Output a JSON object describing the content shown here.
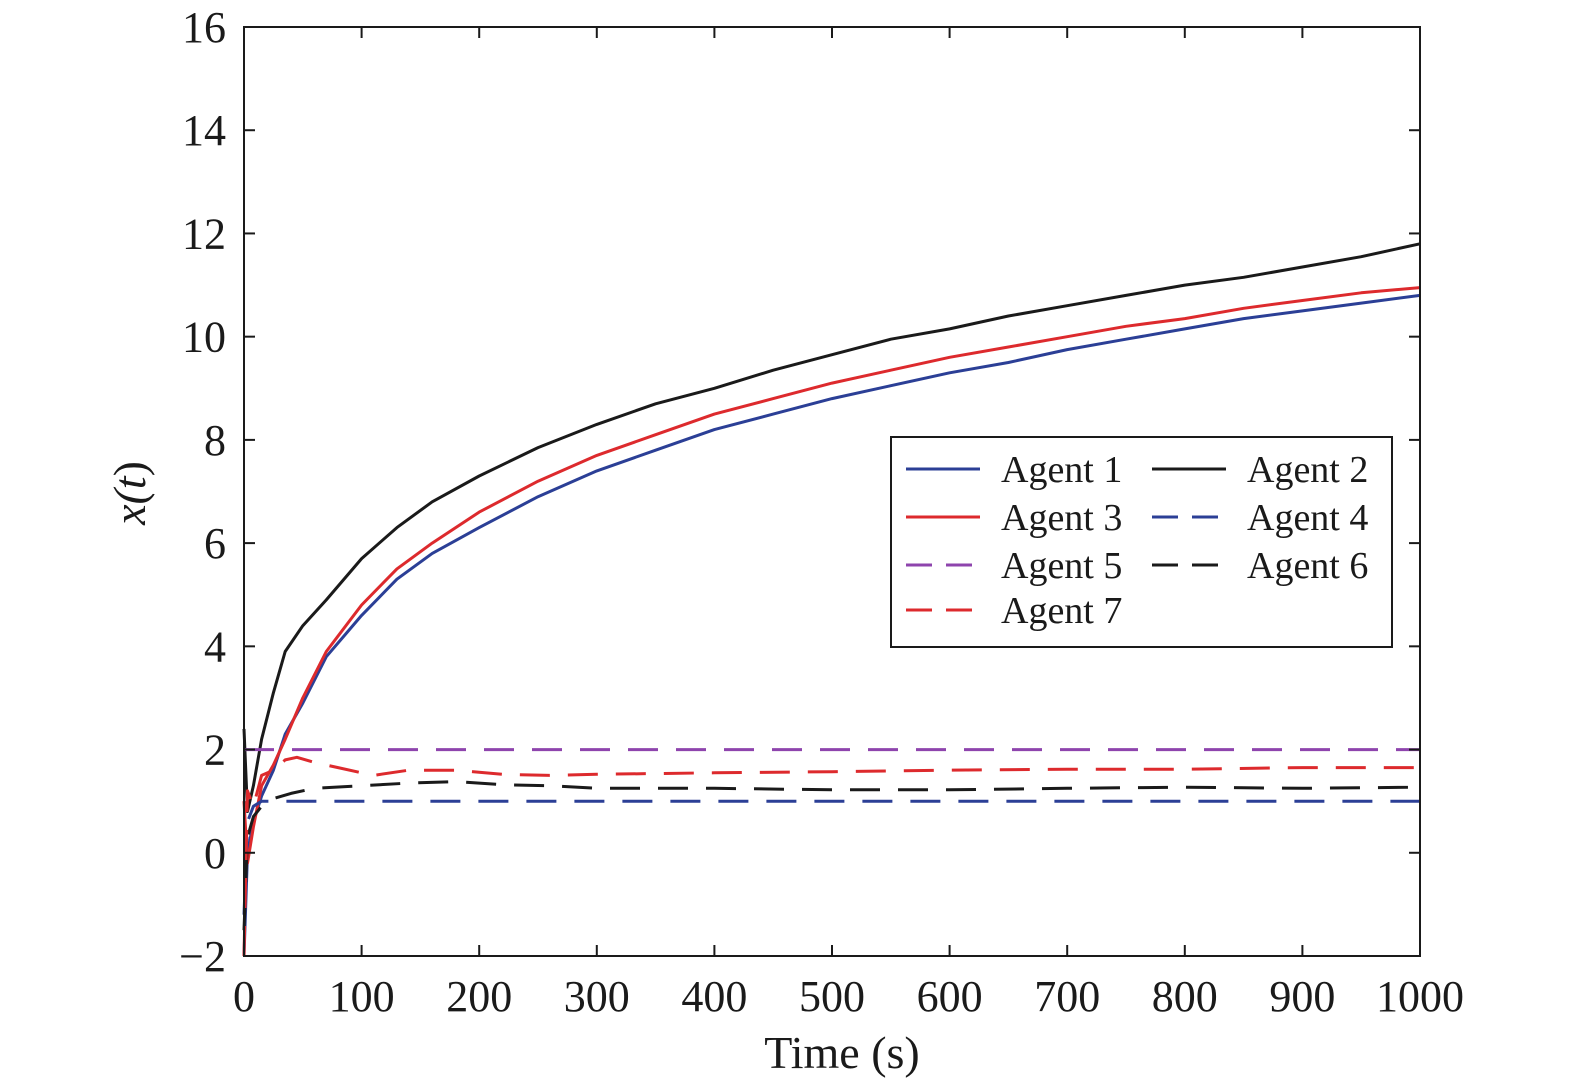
{
  "chart_data": {
    "type": "line",
    "title": "",
    "xlabel": "Time (s)",
    "ylabel_parts": [
      "x(",
      "t",
      ")"
    ],
    "xlim": [
      0,
      1000
    ],
    "ylim": [
      -2,
      16
    ],
    "xticks": [
      0,
      100,
      200,
      300,
      400,
      500,
      600,
      700,
      800,
      900,
      1000
    ],
    "yticks": [
      -2,
      0,
      2,
      4,
      6,
      8,
      10,
      12,
      14,
      16
    ],
    "x_tick_labels": [
      "0",
      "100",
      "200",
      "300",
      "400",
      "500",
      "600",
      "700",
      "800",
      "900",
      "1000"
    ],
    "y_tick_labels": [
      "−2",
      "0",
      "2",
      "4",
      "6",
      "8",
      "10",
      "12",
      "14",
      "16"
    ],
    "grid": false,
    "legend_position": "center-right",
    "series": [
      {
        "name": "Agent 1",
        "color": "#2b3f96",
        "dash": "solid",
        "x": [
          0,
          3,
          8,
          15,
          25,
          35,
          50,
          70,
          100,
          130,
          160,
          200,
          250,
          300,
          350,
          400,
          450,
          500,
          550,
          600,
          650,
          700,
          750,
          800,
          850,
          900,
          950,
          1000
        ],
        "y": [
          -2.0,
          0.0,
          0.6,
          1.1,
          1.6,
          2.3,
          2.9,
          3.8,
          4.6,
          5.3,
          5.8,
          6.3,
          6.9,
          7.4,
          7.8,
          8.2,
          8.5,
          8.8,
          9.05,
          9.3,
          9.5,
          9.75,
          9.95,
          10.15,
          10.35,
          10.5,
          10.65,
          10.8
        ]
      },
      {
        "name": "Agent 2",
        "color": "#1a1a1a",
        "dash": "solid",
        "x": [
          0,
          3,
          8,
          15,
          25,
          35,
          50,
          70,
          100,
          130,
          160,
          200,
          250,
          300,
          350,
          400,
          450,
          500,
          550,
          600,
          650,
          700,
          750,
          800,
          850,
          900,
          950,
          1000
        ],
        "y": [
          2.4,
          0.8,
          1.3,
          2.2,
          3.1,
          3.9,
          4.4,
          4.9,
          5.7,
          6.3,
          6.8,
          7.3,
          7.85,
          8.3,
          8.7,
          9.0,
          9.35,
          9.65,
          9.95,
          10.15,
          10.4,
          10.6,
          10.8,
          11.0,
          11.15,
          11.35,
          11.55,
          11.8
        ]
      },
      {
        "name": "Agent 3",
        "color": "#dd2a2d",
        "dash": "solid",
        "x": [
          0,
          3,
          8,
          15,
          25,
          35,
          50,
          70,
          100,
          130,
          160,
          200,
          250,
          300,
          350,
          400,
          450,
          500,
          550,
          600,
          650,
          700,
          750,
          800,
          850,
          900,
          950,
          1000
        ],
        "y": [
          1.0,
          -0.2,
          0.5,
          1.3,
          1.7,
          2.2,
          3.0,
          3.9,
          4.8,
          5.5,
          6.0,
          6.6,
          7.2,
          7.7,
          8.1,
          8.5,
          8.8,
          9.1,
          9.35,
          9.6,
          9.8,
          10.0,
          10.2,
          10.35,
          10.55,
          10.7,
          10.85,
          10.95
        ]
      },
      {
        "name": "Agent 4",
        "color": "#2b3f96",
        "dash": "dashed",
        "x": [
          0,
          3,
          8,
          15,
          1000
        ],
        "y": [
          -1.2,
          0.6,
          0.9,
          1.0,
          1.0
        ]
      },
      {
        "name": "Agent 5",
        "color": "#8e44ad",
        "dash": "dashed",
        "x": [
          0,
          2,
          1000
        ],
        "y": [
          2.0,
          2.0,
          2.0
        ]
      },
      {
        "name": "Agent 6",
        "color": "#1a1a1a",
        "dash": "dashed",
        "x": [
          0,
          3,
          8,
          15,
          25,
          40,
          60,
          100,
          140,
          180,
          220,
          260,
          300,
          400,
          500,
          600,
          700,
          800,
          900,
          1000
        ],
        "y": [
          -1.5,
          0.3,
          0.7,
          0.9,
          1.05,
          1.15,
          1.25,
          1.3,
          1.35,
          1.38,
          1.32,
          1.3,
          1.25,
          1.25,
          1.22,
          1.22,
          1.25,
          1.27,
          1.25,
          1.27
        ]
      },
      {
        "name": "Agent 7",
        "color": "#dd2a2d",
        "dash": "dashed",
        "x": [
          0,
          3,
          8,
          15,
          25,
          35,
          45,
          60,
          80,
          110,
          140,
          180,
          220,
          260,
          300,
          400,
          500,
          600,
          700,
          800,
          900,
          1000
        ],
        "y": [
          -2.0,
          1.2,
          0.9,
          1.5,
          1.6,
          1.8,
          1.85,
          1.75,
          1.65,
          1.5,
          1.6,
          1.6,
          1.52,
          1.5,
          1.52,
          1.55,
          1.57,
          1.6,
          1.62,
          1.62,
          1.65,
          1.65
        ]
      }
    ]
  }
}
